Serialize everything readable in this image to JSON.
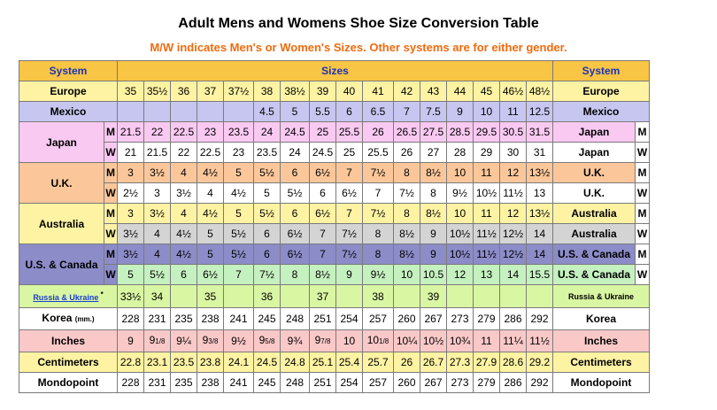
{
  "title": "Adult Mens and Womens Shoe Size Conversion Table",
  "subtitle": "M/W indicates Men's or Women's Sizes. Other systems are for either gender.",
  "header": {
    "system": "System",
    "sizes": "Sizes"
  },
  "colors": {
    "header": "#f8c544",
    "europe": "#fdf3a3",
    "mexico": "#c7c6f0",
    "japan": "#f9c9f2",
    "uk": "#fbc79a",
    "australia": "#fdf3a3",
    "australia_w": "#d4d4d4",
    "usa": "#8c8cc9",
    "usa_w": "#c5f0bf",
    "russia": "#d9f6a3",
    "korea": "#ffffff",
    "inches": "#fbc8c8",
    "cm": "#fdf3a3",
    "mondo": "#ffffff",
    "title_accent": "#f26a0c"
  },
  "rows": [
    {
      "label": "Europe",
      "mw": "",
      "right": "Europe",
      "rmw": "",
      "bg": "europe",
      "cells": [
        "35",
        "35½",
        "36",
        "37",
        "37½",
        "38",
        "38½",
        "39",
        "40",
        "41",
        "42",
        "43",
        "44",
        "45",
        "46½",
        "48½"
      ]
    },
    {
      "label": "Mexico",
      "mw": "",
      "right": "Mexico",
      "rmw": "",
      "bg": "mexico",
      "cells": [
        "",
        "",
        "",
        "",
        "",
        "4.5",
        "5",
        "5.5",
        "6",
        "6.5",
        "7",
        "7.5",
        "9",
        "10",
        "11",
        "12.5"
      ]
    },
    {
      "label": "Japan",
      "mw": "M",
      "right": "Japan",
      "rmw": "M",
      "bg": "japan",
      "cells": [
        "21.5",
        "22",
        "22.5",
        "23",
        "23.5",
        "24",
        "24.5",
        "25",
        "25.5",
        "26",
        "26.5",
        "27.5",
        "28.5",
        "29.5",
        "30.5",
        "31.5"
      ]
    },
    {
      "label": "",
      "mw": "W",
      "right": "Japan",
      "rmw": "W",
      "bg": "japan_w",
      "cells": [
        "21",
        "21.5",
        "22",
        "22.5",
        "23",
        "23.5",
        "24",
        "24.5",
        "25",
        "25.5",
        "26",
        "27",
        "28",
        "29",
        "30",
        "31"
      ]
    },
    {
      "label": "U.K.",
      "mw": "M",
      "right": "U.K.",
      "rmw": "M",
      "bg": "uk",
      "cells": [
        "3",
        "3½",
        "4",
        "4½",
        "5",
        "5½",
        "6",
        "6½",
        "7",
        "7½",
        "8",
        "8½",
        "10",
        "11",
        "12",
        "13½"
      ]
    },
    {
      "label": "",
      "mw": "W",
      "right": "U.K.",
      "rmw": "W",
      "bg": "uk_w",
      "cells": [
        "2½",
        "3",
        "3½",
        "4",
        "4½",
        "5",
        "5½",
        "6",
        "6½",
        "7",
        "7½",
        "8",
        "9½",
        "10½",
        "11½",
        "13"
      ]
    },
    {
      "label": "Australia",
      "mw": "M",
      "right": "Australia",
      "rmw": "M",
      "bg": "australia",
      "cells": [
        "3",
        "3½",
        "4",
        "4½",
        "5",
        "5½",
        "6",
        "6½",
        "7",
        "7½",
        "8",
        "8½",
        "10",
        "11",
        "12",
        "13½"
      ]
    },
    {
      "label": "",
      "mw": "W",
      "right": "Australia",
      "rmw": "W",
      "bg": "australia_w",
      "cells": [
        "3½",
        "4",
        "4½",
        "5",
        "5½",
        "6",
        "6½",
        "7",
        "7½",
        "8",
        "8½",
        "9",
        "10½",
        "11½",
        "12½",
        "14"
      ]
    },
    {
      "label": "U.S. & Canada",
      "mw": "M",
      "right": "U.S. & Canada",
      "rmw": "M",
      "bg": "usa",
      "cells": [
        "3½",
        "4",
        "4½",
        "5",
        "5½",
        "6",
        "6½",
        "7",
        "7½",
        "8",
        "8½",
        "9",
        "10½",
        "11½",
        "12½",
        "14"
      ]
    },
    {
      "label": "",
      "mw": "W",
      "right": "U.S. & Canada",
      "rmw": "W",
      "bg": "usa_w",
      "cells": [
        "5",
        "5½",
        "6",
        "6½",
        "7",
        "7½",
        "8",
        "8½",
        "9",
        "9½",
        "10",
        "10.5",
        "12",
        "13",
        "14",
        "15.5"
      ]
    },
    {
      "label": "Russia & Ukraine",
      "mw": "",
      "right": "Russia & Ukraine",
      "rmw": "",
      "bg": "russia",
      "cells": [
        "33½",
        "34",
        "",
        "35",
        "",
        "36",
        "",
        "37",
        "",
        "38",
        "",
        "39",
        "",
        "",
        "",
        ""
      ]
    },
    {
      "label": "Korea",
      "mw": "",
      "right": "Korea",
      "rmw": "",
      "bg": "korea",
      "label_suffix": "(mm.)",
      "cells": [
        "228",
        "231",
        "235",
        "238",
        "241",
        "245",
        "248",
        "251",
        "254",
        "257",
        "260",
        "267",
        "273",
        "279",
        "286",
        "292"
      ]
    },
    {
      "label": "Inches",
      "mw": "",
      "right": "Inches",
      "rmw": "",
      "bg": "inches",
      "cells": [
        "9",
        "9 1/8",
        "9¼",
        "9 3/8",
        "9½",
        "9 5/8",
        "9¾",
        "9 7/8",
        "10",
        "10 1/8",
        "10¼",
        "10½",
        "10¾",
        "11",
        "11¼",
        "11½"
      ]
    },
    {
      "label": "Centimeters",
      "mw": "",
      "right": "Centimeters",
      "rmw": "",
      "bg": "cm",
      "cells": [
        "22.8",
        "23.1",
        "23.5",
        "23.8",
        "24.1",
        "24.5",
        "24.8",
        "25.1",
        "25.4",
        "25.7",
        "26",
        "26.7",
        "27.3",
        "27.9",
        "28.6",
        "29.2"
      ]
    },
    {
      "label": "Mondopoint",
      "mw": "",
      "right": "Mondopoint",
      "rmw": "",
      "bg": "mondo",
      "cells": [
        "228",
        "231",
        "235",
        "238",
        "241",
        "245",
        "248",
        "251",
        "254",
        "257",
        "260",
        "267",
        "273",
        "279",
        "286",
        "292"
      ]
    }
  ]
}
